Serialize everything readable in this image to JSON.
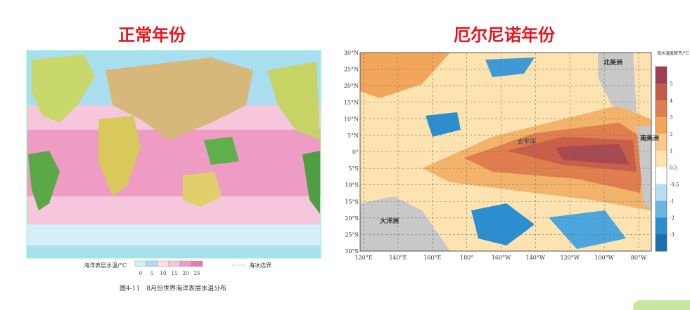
{
  "left_panel": {
    "title": "正常年份",
    "legend": {
      "label": "海洋表层水温/°C",
      "ticks": [
        0,
        5,
        10,
        15,
        20,
        25
      ],
      "ice_label": "海冰边界"
    },
    "caption": "图4-11　8月份世界海洋表层水温分布"
  },
  "right_panel": {
    "title": "厄尔尼诺年份",
    "colorbar_title": "海水温度距平/°C",
    "colorbar_ticks": [
      5,
      4,
      3,
      2,
      1,
      0.5,
      -0.5,
      -1,
      -2,
      -3
    ],
    "y_labels": [
      "30°N",
      "25°N",
      "20°N",
      "15°N",
      "10°N",
      "5°N",
      "0°",
      "5°S",
      "10°S",
      "15°S",
      "20°S",
      "25°S",
      "30°S"
    ],
    "x_labels": [
      "120°E",
      "140°E",
      "160°E",
      "180°",
      "160°W",
      "140°W",
      "120°W",
      "100°W",
      "80°W"
    ],
    "region_labels": [
      "北美洲",
      "南美洲",
      "大洋洲",
      "太平洋"
    ]
  }
}
